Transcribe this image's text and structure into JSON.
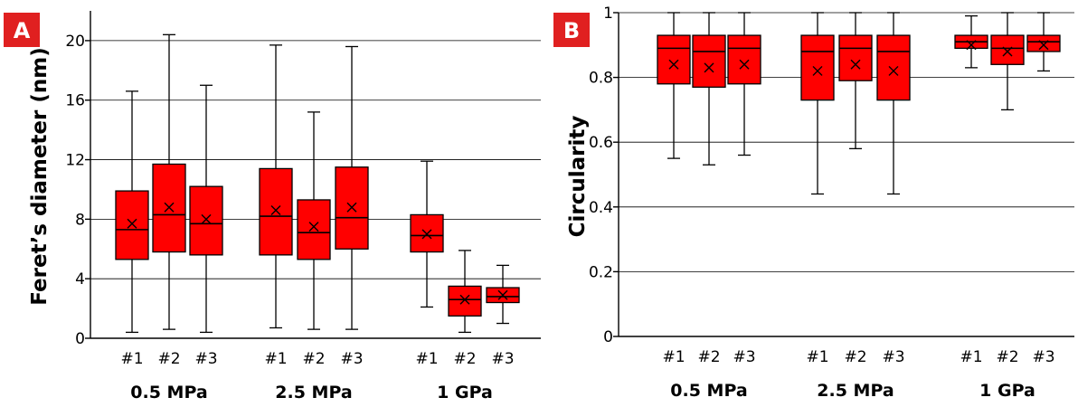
{
  "chart_data": [
    {
      "type": "box",
      "panel_label": "A",
      "ylabel": "Feret’s diameter (nm)",
      "ylim": [
        0,
        22
      ],
      "yticks": [
        0,
        4,
        8,
        12,
        16,
        20
      ],
      "grid": true,
      "groups": [
        "0.5 MPa",
        "2.5 MPa",
        "1 GPa"
      ],
      "sublabels": [
        "#1",
        "#2",
        "#3"
      ],
      "box_color": "#ff0000",
      "boxes": [
        {
          "group": 0,
          "label": "#1",
          "min": 0.4,
          "q1": 5.3,
          "median": 7.3,
          "q3": 9.9,
          "max": 16.6,
          "mean": 7.7
        },
        {
          "group": 0,
          "label": "#2",
          "min": 0.6,
          "q1": 5.8,
          "median": 8.3,
          "q3": 11.7,
          "max": 20.4,
          "mean": 8.8
        },
        {
          "group": 0,
          "label": "#3",
          "min": 0.4,
          "q1": 5.6,
          "median": 7.7,
          "q3": 10.2,
          "max": 17.0,
          "mean": 8.0
        },
        {
          "group": 1,
          "label": "#1",
          "min": 0.7,
          "q1": 5.6,
          "median": 8.2,
          "q3": 11.4,
          "max": 19.7,
          "mean": 8.6
        },
        {
          "group": 1,
          "label": "#2",
          "min": 0.6,
          "q1": 5.3,
          "median": 7.1,
          "q3": 9.3,
          "max": 15.2,
          "mean": 7.5
        },
        {
          "group": 1,
          "label": "#3",
          "min": 0.6,
          "q1": 6.0,
          "median": 8.1,
          "q3": 11.5,
          "max": 19.6,
          "mean": 8.8
        },
        {
          "group": 2,
          "label": "#1",
          "min": 2.1,
          "q1": 5.8,
          "median": 6.9,
          "q3": 8.3,
          "max": 11.9,
          "mean": 7.0
        },
        {
          "group": 2,
          "label": "#2",
          "min": 0.4,
          "q1": 1.5,
          "median": 2.6,
          "q3": 3.5,
          "max": 5.9,
          "mean": 2.6
        },
        {
          "group": 2,
          "label": "#3",
          "min": 1.0,
          "q1": 2.4,
          "median": 2.8,
          "q3": 3.4,
          "max": 4.9,
          "mean": 2.9
        }
      ]
    },
    {
      "type": "box",
      "panel_label": "B",
      "ylabel": "Circularity",
      "ylim": [
        0,
        1
      ],
      "yticks": [
        0,
        0.2,
        0.4,
        0.6,
        0.8,
        1
      ],
      "ytick_labels": [
        "0",
        "0.2",
        "0.4",
        "0.6",
        "0.8",
        "1"
      ],
      "grid": true,
      "groups": [
        "0.5 MPa",
        "2.5 MPa",
        "1 GPa"
      ],
      "sublabels": [
        "#1",
        "#2",
        "#3"
      ],
      "box_color": "#ff0000",
      "boxes": [
        {
          "group": 0,
          "label": "#1",
          "min": 0.55,
          "q1": 0.78,
          "median": 0.89,
          "q3": 0.93,
          "max": 1.0,
          "mean": 0.84
        },
        {
          "group": 0,
          "label": "#2",
          "min": 0.53,
          "q1": 0.77,
          "median": 0.88,
          "q3": 0.93,
          "max": 1.0,
          "mean": 0.83
        },
        {
          "group": 0,
          "label": "#3",
          "min": 0.56,
          "q1": 0.78,
          "median": 0.89,
          "q3": 0.93,
          "max": 1.0,
          "mean": 0.84
        },
        {
          "group": 1,
          "label": "#1",
          "min": 0.44,
          "q1": 0.73,
          "median": 0.88,
          "q3": 0.93,
          "max": 1.0,
          "mean": 0.82
        },
        {
          "group": 1,
          "label": "#2",
          "min": 0.58,
          "q1": 0.79,
          "median": 0.89,
          "q3": 0.93,
          "max": 1.0,
          "mean": 0.84
        },
        {
          "group": 1,
          "label": "#3",
          "min": 0.44,
          "q1": 0.73,
          "median": 0.88,
          "q3": 0.93,
          "max": 1.0,
          "mean": 0.82
        },
        {
          "group": 2,
          "label": "#1",
          "min": 0.83,
          "q1": 0.89,
          "median": 0.91,
          "q3": 0.93,
          "max": 0.99,
          "mean": 0.9
        },
        {
          "group": 2,
          "label": "#2",
          "min": 0.7,
          "q1": 0.84,
          "median": 0.89,
          "q3": 0.93,
          "max": 1.0,
          "mean": 0.88
        },
        {
          "group": 2,
          "label": "#3",
          "min": 0.82,
          "q1": 0.88,
          "median": 0.91,
          "q3": 0.93,
          "max": 1.0,
          "mean": 0.9
        }
      ]
    }
  ]
}
